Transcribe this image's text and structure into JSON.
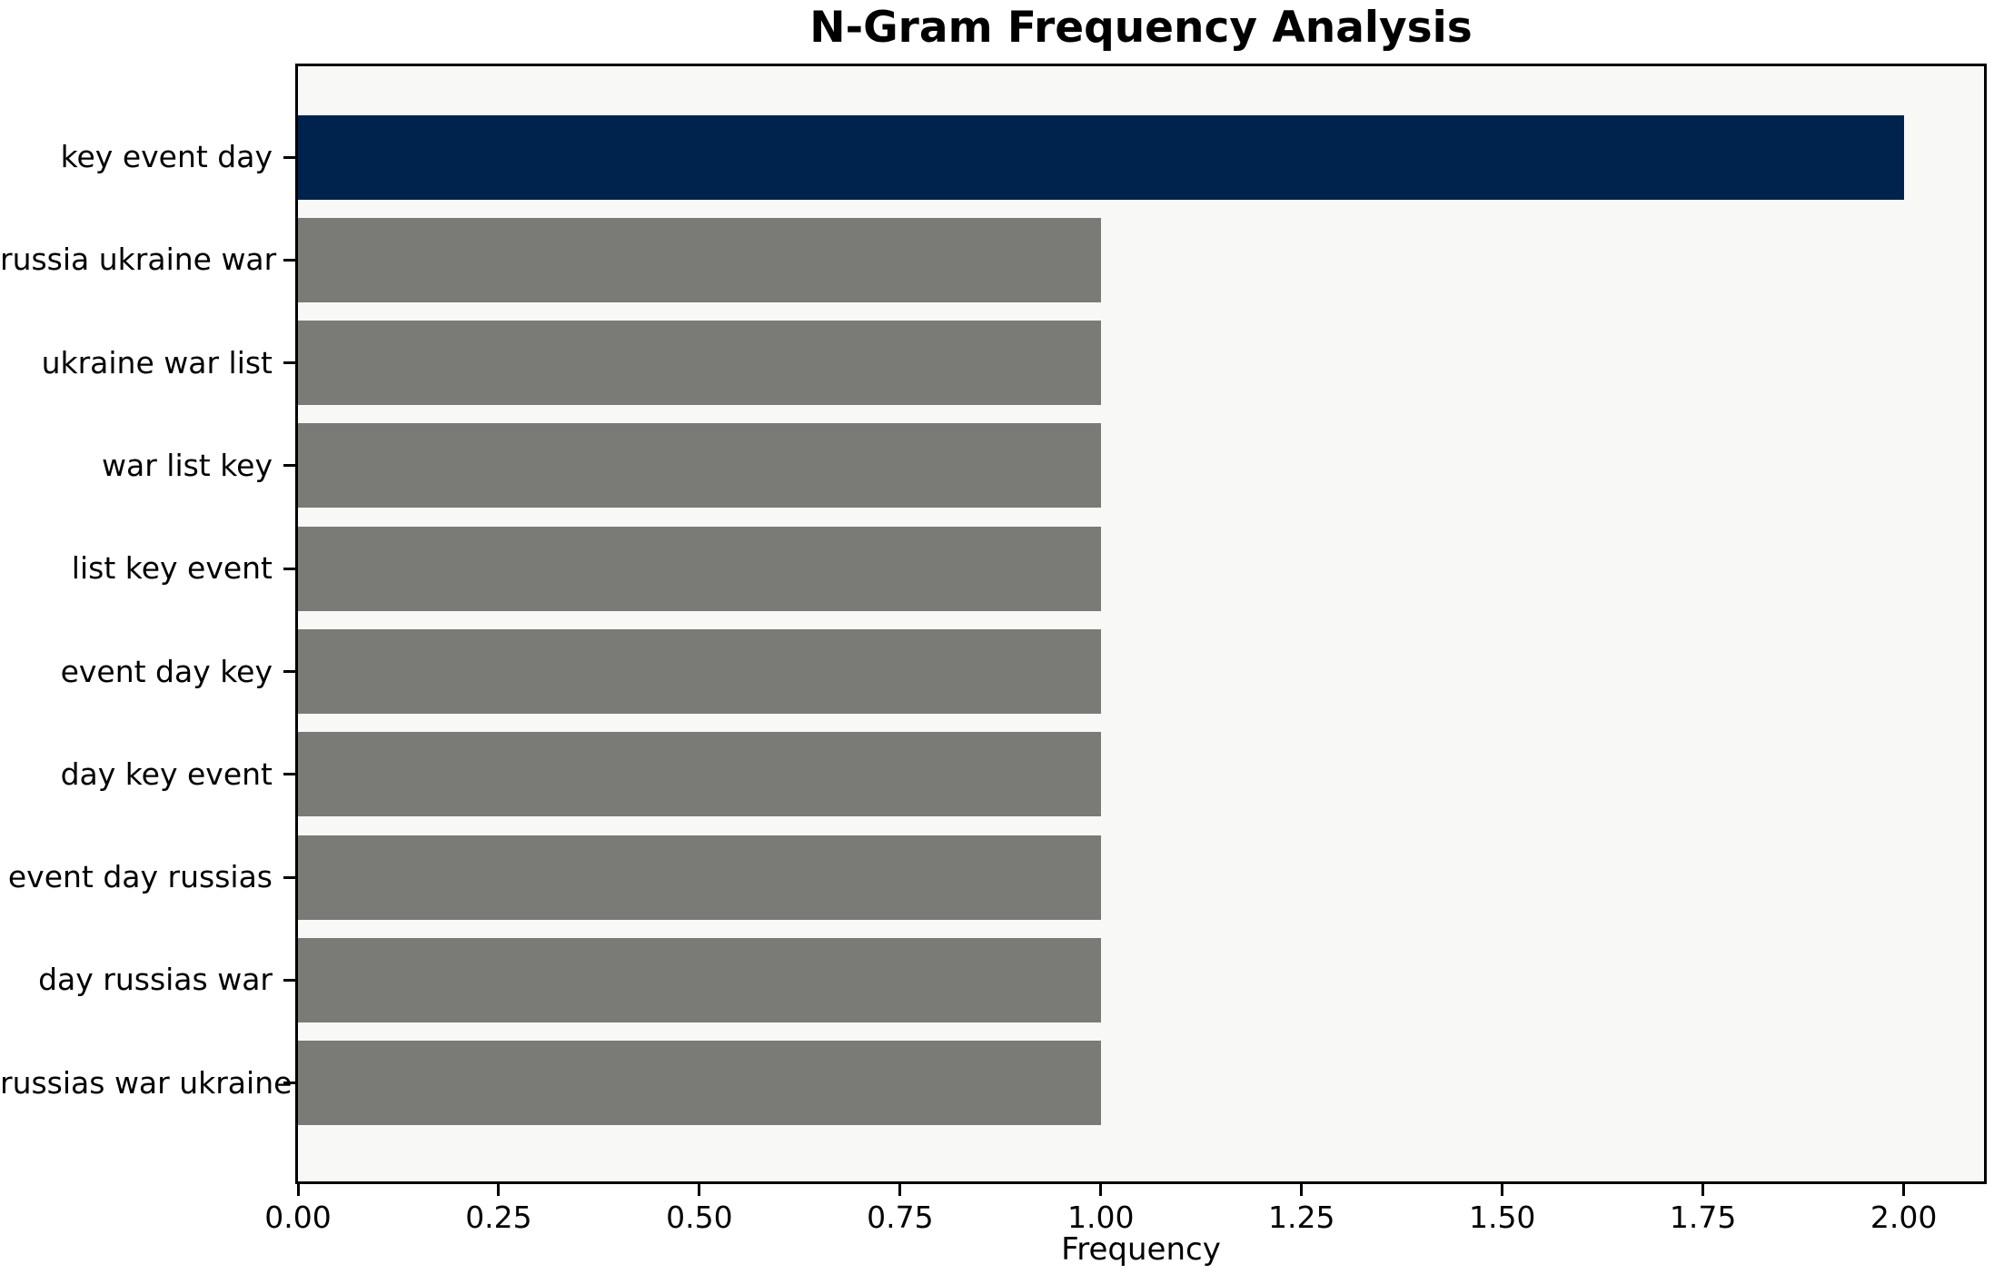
{
  "chart_data": {
    "type": "bar",
    "orientation": "horizontal",
    "title": "N-Gram Frequency Analysis",
    "xlabel": "Frequency",
    "ylabel": "",
    "categories": [
      "key event day",
      "russia ukraine war",
      "ukraine war list",
      "war list key",
      "list key event",
      "event day key",
      "day key event",
      "event day russias",
      "day russias war",
      "russias war ukraine"
    ],
    "values": [
      2,
      1,
      1,
      1,
      1,
      1,
      1,
      1,
      1,
      1
    ],
    "highlight_index": 0,
    "xlim": [
      0,
      2.1
    ],
    "xticks": [
      0.0,
      0.25,
      0.5,
      0.75,
      1.0,
      1.25,
      1.5,
      1.75,
      2.0
    ],
    "xtick_labels": [
      "0.00",
      "0.25",
      "0.50",
      "0.75",
      "1.00",
      "1.25",
      "1.50",
      "1.75",
      "2.00"
    ],
    "grid": false,
    "legend": null,
    "colors": {
      "highlight_bar": "#00234e",
      "default_bar": "#7a7a76",
      "plot_background": "#f8f8f6",
      "figure_background": "#ffffff",
      "spine": "#000000",
      "text": "#000000"
    }
  }
}
